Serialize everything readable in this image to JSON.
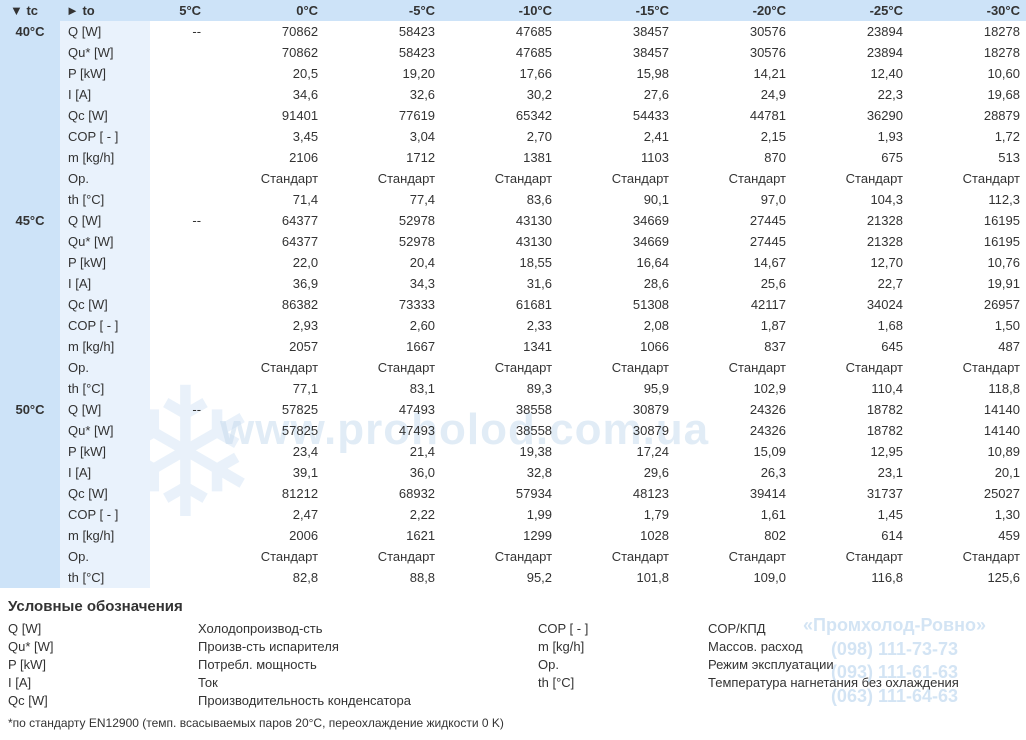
{
  "header": {
    "tc_label": "▼ tc",
    "to_label": "► to",
    "temps": [
      "5°C",
      "0°C",
      "-5°C",
      "-10°C",
      "-15°C",
      "-20°C",
      "-25°C",
      "-30°C"
    ]
  },
  "params": [
    "Q [W]",
    "Qu* [W]",
    "P [kW]",
    "I [A]",
    "Qc [W]",
    "COP [ - ]",
    "m [kg/h]",
    "Op.",
    "th [°C]"
  ],
  "blocks": [
    {
      "tc": "40°C",
      "rows": [
        [
          "--",
          "70862",
          "58423",
          "47685",
          "38457",
          "30576",
          "23894",
          "18278"
        ],
        [
          "",
          "70862",
          "58423",
          "47685",
          "38457",
          "30576",
          "23894",
          "18278"
        ],
        [
          "",
          "20,5",
          "19,20",
          "17,66",
          "15,98",
          "14,21",
          "12,40",
          "10,60"
        ],
        [
          "",
          "34,6",
          "32,6",
          "30,2",
          "27,6",
          "24,9",
          "22,3",
          "19,68"
        ],
        [
          "",
          "91401",
          "77619",
          "65342",
          "54433",
          "44781",
          "36290",
          "28879"
        ],
        [
          "",
          "3,45",
          "3,04",
          "2,70",
          "2,41",
          "2,15",
          "1,93",
          "1,72"
        ],
        [
          "",
          "2106",
          "1712",
          "1381",
          "1103",
          "870",
          "675",
          "513"
        ],
        [
          "",
          "Стандарт",
          "Стандарт",
          "Стандарт",
          "Стандарт",
          "Стандарт",
          "Стандарт",
          "Стандарт"
        ],
        [
          "",
          "71,4",
          "77,4",
          "83,6",
          "90,1",
          "97,0",
          "104,3",
          "112,3"
        ]
      ]
    },
    {
      "tc": "45°C",
      "rows": [
        [
          "--",
          "64377",
          "52978",
          "43130",
          "34669",
          "27445",
          "21328",
          "16195"
        ],
        [
          "",
          "64377",
          "52978",
          "43130",
          "34669",
          "27445",
          "21328",
          "16195"
        ],
        [
          "",
          "22,0",
          "20,4",
          "18,55",
          "16,64",
          "14,67",
          "12,70",
          "10,76"
        ],
        [
          "",
          "36,9",
          "34,3",
          "31,6",
          "28,6",
          "25,6",
          "22,7",
          "19,91"
        ],
        [
          "",
          "86382",
          "73333",
          "61681",
          "51308",
          "42117",
          "34024",
          "26957"
        ],
        [
          "",
          "2,93",
          "2,60",
          "2,33",
          "2,08",
          "1,87",
          "1,68",
          "1,50"
        ],
        [
          "",
          "2057",
          "1667",
          "1341",
          "1066",
          "837",
          "645",
          "487"
        ],
        [
          "",
          "Стандарт",
          "Стандарт",
          "Стандарт",
          "Стандарт",
          "Стандарт",
          "Стандарт",
          "Стандарт"
        ],
        [
          "",
          "77,1",
          "83,1",
          "89,3",
          "95,9",
          "102,9",
          "110,4",
          "118,8"
        ]
      ]
    },
    {
      "tc": "50°C",
      "rows": [
        [
          "--",
          "57825",
          "47493",
          "38558",
          "30879",
          "24326",
          "18782",
          "14140"
        ],
        [
          "",
          "57825",
          "47493",
          "38558",
          "30879",
          "24326",
          "18782",
          "14140"
        ],
        [
          "",
          "23,4",
          "21,4",
          "19,38",
          "17,24",
          "15,09",
          "12,95",
          "10,89"
        ],
        [
          "",
          "39,1",
          "36,0",
          "32,8",
          "29,6",
          "26,3",
          "23,1",
          "20,1"
        ],
        [
          "",
          "81212",
          "68932",
          "57934",
          "48123",
          "39414",
          "31737",
          "25027"
        ],
        [
          "",
          "2,47",
          "2,22",
          "1,99",
          "1,79",
          "1,61",
          "1,45",
          "1,30"
        ],
        [
          "",
          "2006",
          "1621",
          "1299",
          "1028",
          "802",
          "614",
          "459"
        ],
        [
          "",
          "Стандарт",
          "Стандарт",
          "Стандарт",
          "Стандарт",
          "Стандарт",
          "Стандарт",
          "Стандарт"
        ],
        [
          "",
          "82,8",
          "88,8",
          "95,2",
          "101,8",
          "109,0",
          "116,8",
          "125,6"
        ]
      ]
    }
  ],
  "legend": {
    "title": "Условные обозначения",
    "items": [
      {
        "sym": "Q [W]",
        "desc": "Холодопроизвод-сть",
        "sym2": "COP [ - ]",
        "desc2": "COP/КПД"
      },
      {
        "sym": "Qu* [W]",
        "desc": "Произв-сть испарителя",
        "sym2": "m [kg/h]",
        "desc2": "Массов. расход"
      },
      {
        "sym": "P [kW]",
        "desc": "Потребл. мощность",
        "sym2": "Op.",
        "desc2": "Режим эксплуатации"
      },
      {
        "sym": "I [A]",
        "desc": "Ток",
        "sym2": "th [°C]",
        "desc2": "Температура нагнетания без охлаждения"
      },
      {
        "sym": "Qc [W]",
        "desc": "Производительность конденсатора",
        "sym2": "",
        "desc2": ""
      }
    ]
  },
  "footnote": "*по стандарту EN12900 (темп. всасываемых паров 20°С, переохлаждение жидкости 0 K)",
  "watermark": {
    "url": "www.proholod.com.ua",
    "company": "«Промхолод-Ровно»",
    "phones": [
      "(098) 111-73-73",
      "(093) 111-61-63",
      "(063) 111-64-63"
    ]
  },
  "style": {
    "header_bg": "#cde3f8",
    "param_bg": "#e9f2fc",
    "text_color": "#333333",
    "watermark_color": "#c9ddef"
  }
}
